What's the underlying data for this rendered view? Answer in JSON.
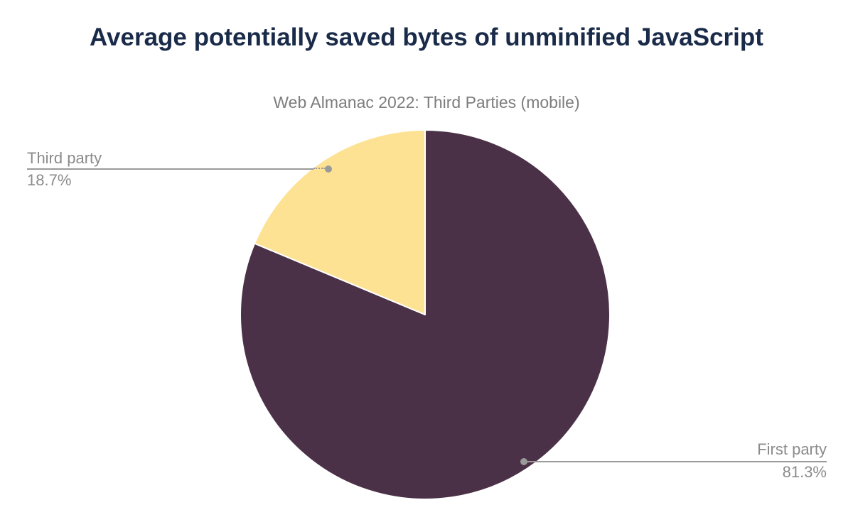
{
  "header": {
    "title": "Average potentially saved bytes of unminified JavaScript",
    "subtitle": "Web Almanac 2022: Third Parties (mobile)"
  },
  "colors": {
    "title_text": "#1a2b49",
    "subtitle_text": "#7d7d7d",
    "label_text": "#8b8b8b",
    "leader_line": "#9a9a9a",
    "slice_border": "#ffffff",
    "background": "#ffffff",
    "first_party_slice": "#4b3147",
    "third_party_slice": "#fde293"
  },
  "chart_data": {
    "type": "pie",
    "title": "Average potentially saved bytes of unminified JavaScript",
    "subtitle": "Web Almanac 2022: Third Parties (mobile)",
    "start_angle_deg": 0,
    "direction": "clockwise",
    "legend": "none",
    "label_style": "outside-with-leader-lines",
    "slices": [
      {
        "label": "First party",
        "value_pct": 81.3,
        "display": "81.3%",
        "color": "#4b3147"
      },
      {
        "label": "Third party",
        "value_pct": 18.7,
        "display": "18.7%",
        "color": "#fde293"
      }
    ]
  }
}
